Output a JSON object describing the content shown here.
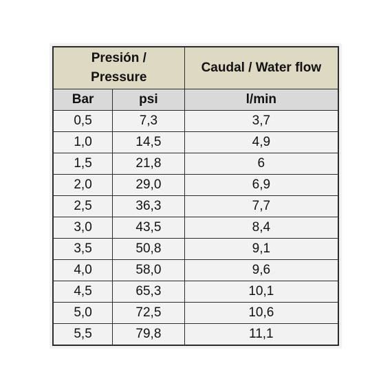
{
  "table": {
    "header": {
      "pressure": "Presión / Pressure",
      "flow": "Caudal / Water flow"
    },
    "units": [
      "Bar",
      "psi",
      "l/min"
    ],
    "rows": [
      [
        "0,5",
        "7,3",
        "3,7"
      ],
      [
        "1,0",
        "14,5",
        "4,9"
      ],
      [
        "1,5",
        "21,8",
        "6"
      ],
      [
        "2,0",
        "29,0",
        "6,9"
      ],
      [
        "2,5",
        "36,3",
        "7,7"
      ],
      [
        "3,0",
        "43,5",
        "8,4"
      ],
      [
        "3,5",
        "50,8",
        "9,1"
      ],
      [
        "4,0",
        "58,0",
        "9,6"
      ],
      [
        "4,5",
        "65,3",
        "10,1"
      ],
      [
        "5,0",
        "72,5",
        "10,6"
      ],
      [
        "5,5",
        "79,8",
        "11,1"
      ]
    ]
  }
}
